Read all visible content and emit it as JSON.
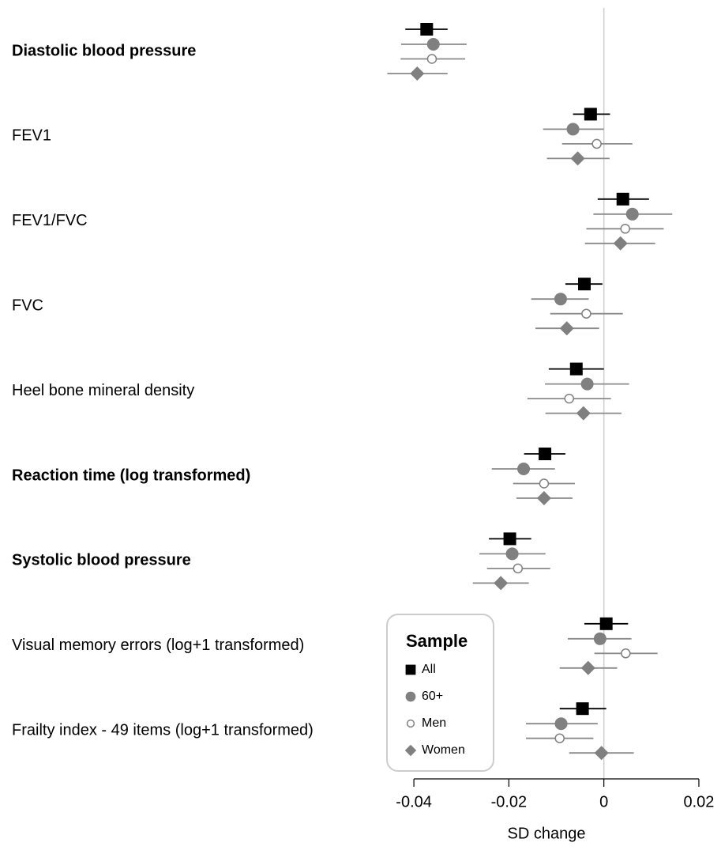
{
  "chart_data": {
    "type": "forest",
    "xlabel": "SD change",
    "categories": [
      "Diastolic blood pressure",
      "FEV1",
      "FEV1/FVC",
      "FVC",
      "Heel bone mineral density",
      "Reaction time (log transformed)",
      "Systolic blood pressure",
      "Visual memory errors (log+1 transformed)",
      "Frailty index - 49 items (log+1 transformed)"
    ],
    "bold": [
      true,
      false,
      false,
      false,
      false,
      true,
      true,
      false,
      false
    ],
    "series": [
      {
        "name": "All",
        "color": "#000000",
        "marker": "square",
        "values": [
          -0.0373,
          -0.0028,
          0.004,
          -0.0041,
          -0.0058,
          -0.0124,
          -0.0198,
          0.0005,
          -0.0045
        ],
        "lower": [
          -0.0418,
          -0.0065,
          -0.0013,
          -0.0081,
          -0.0116,
          -0.0168,
          -0.0242,
          -0.0041,
          -0.0093
        ],
        "upper": [
          -0.0329,
          0.0013,
          0.0095,
          -0.0003,
          0.0,
          -0.0081,
          -0.0153,
          0.0051,
          0.0005
        ]
      },
      {
        "name": "60+",
        "color": "#808080",
        "marker": "circle",
        "values": [
          -0.0359,
          -0.0065,
          0.006,
          -0.0091,
          -0.0035,
          -0.0169,
          -0.0193,
          -0.0008,
          -0.009
        ],
        "lower": [
          -0.0427,
          -0.0128,
          -0.0022,
          -0.0153,
          -0.0124,
          -0.0236,
          -0.0262,
          -0.0076,
          -0.0164
        ],
        "upper": [
          -0.0289,
          0.0,
          0.0144,
          -0.0032,
          0.0053,
          -0.0103,
          -0.0123,
          0.0058,
          -0.0013
        ]
      },
      {
        "name": "Men",
        "color": "#808080",
        "marker": "open-circle",
        "values": [
          -0.0362,
          -0.0015,
          0.0045,
          -0.0037,
          -0.0073,
          -0.0126,
          -0.0181,
          0.0046,
          -0.0093
        ],
        "lower": [
          -0.0428,
          -0.0088,
          -0.0037,
          -0.0113,
          -0.0161,
          -0.0191,
          -0.0246,
          -0.002,
          -0.0164
        ],
        "upper": [
          -0.0292,
          0.006,
          0.0126,
          0.004,
          0.0015,
          -0.0061,
          -0.0113,
          0.0113,
          -0.0022
        ]
      },
      {
        "name": "Women",
        "color": "#808080",
        "marker": "diamond",
        "values": [
          -0.0393,
          -0.0055,
          0.0035,
          -0.0078,
          -0.0043,
          -0.0126,
          -0.0217,
          -0.0033,
          -0.0005
        ],
        "lower": [
          -0.0456,
          -0.012,
          -0.004,
          -0.0144,
          -0.0123,
          -0.0184,
          -0.0276,
          -0.0093,
          -0.0073
        ],
        "upper": [
          -0.0329,
          0.0012,
          0.0108,
          -0.001,
          0.0037,
          -0.0066,
          -0.0158,
          0.0028,
          0.0063
        ]
      }
    ],
    "xlim": [
      -0.047,
      0.023
    ],
    "xticks": [
      -0.04,
      -0.02,
      0,
      0.02
    ],
    "legend_title": "Sample",
    "legend": "bottom-center"
  }
}
